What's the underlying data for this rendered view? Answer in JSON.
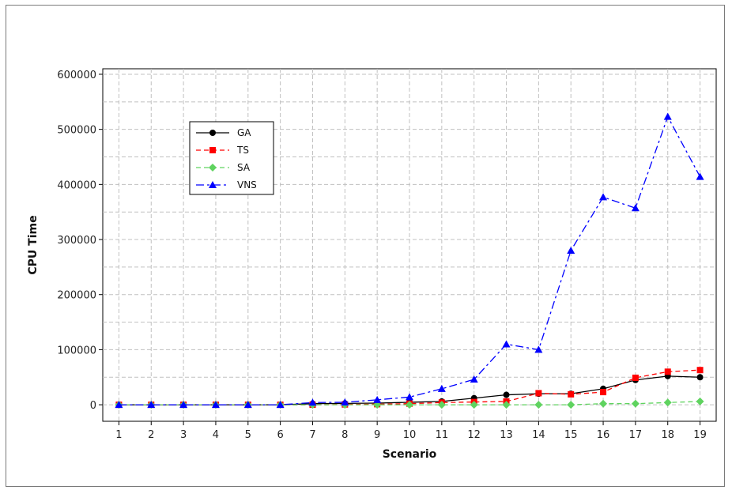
{
  "chart_data": {
    "type": "line",
    "title": "",
    "xlabel": "Scenario",
    "ylabel": "CPU Time",
    "categories": [
      "1",
      "2",
      "3",
      "4",
      "5",
      "6",
      "7",
      "8",
      "9",
      "10",
      "11",
      "12",
      "13",
      "14",
      "15",
      "16",
      "17",
      "18",
      "19"
    ],
    "xlim": [
      0.5,
      19.5
    ],
    "ylim": [
      -30000,
      610000
    ],
    "yticks": [
      0,
      100000,
      200000,
      300000,
      400000,
      500000,
      600000
    ],
    "yticks_labels": [
      "0",
      "100000",
      "200000",
      "300000",
      "400000",
      "500000",
      "600000"
    ],
    "grid": true,
    "legend_position": "top-left",
    "series": [
      {
        "name": "GA",
        "color": "#000000",
        "marker": "circle",
        "dash": "solid",
        "values": [
          0,
          0,
          0,
          0,
          0,
          0,
          2000,
          2500,
          3000,
          4500,
          6000,
          12000,
          18000,
          20000,
          20000,
          29000,
          45000,
          52000,
          50000
        ]
      },
      {
        "name": "TS",
        "color": "#ff0000",
        "marker": "square",
        "dash": "dashed",
        "values": [
          0,
          0,
          0,
          0,
          0,
          0,
          0,
          500,
          1000,
          2000,
          4000,
          5000,
          6000,
          21000,
          19000,
          23000,
          49000,
          60000,
          63000
        ]
      },
      {
        "name": "SA",
        "color": "#5fd35f",
        "marker": "diamond",
        "dash": "dashed",
        "values": [
          0,
          0,
          0,
          0,
          0,
          0,
          0,
          0,
          0,
          0,
          0,
          0,
          0,
          0,
          0,
          2000,
          2000,
          4000,
          6000
        ]
      },
      {
        "name": "VNS",
        "color": "#0000ff",
        "marker": "triangle",
        "dash": "dashdot",
        "values": [
          0,
          0,
          0,
          0,
          0,
          0,
          4000,
          4500,
          9000,
          14000,
          29000,
          46000,
          110000,
          100000,
          280000,
          377000,
          357000,
          523000,
          414000
        ]
      }
    ]
  }
}
